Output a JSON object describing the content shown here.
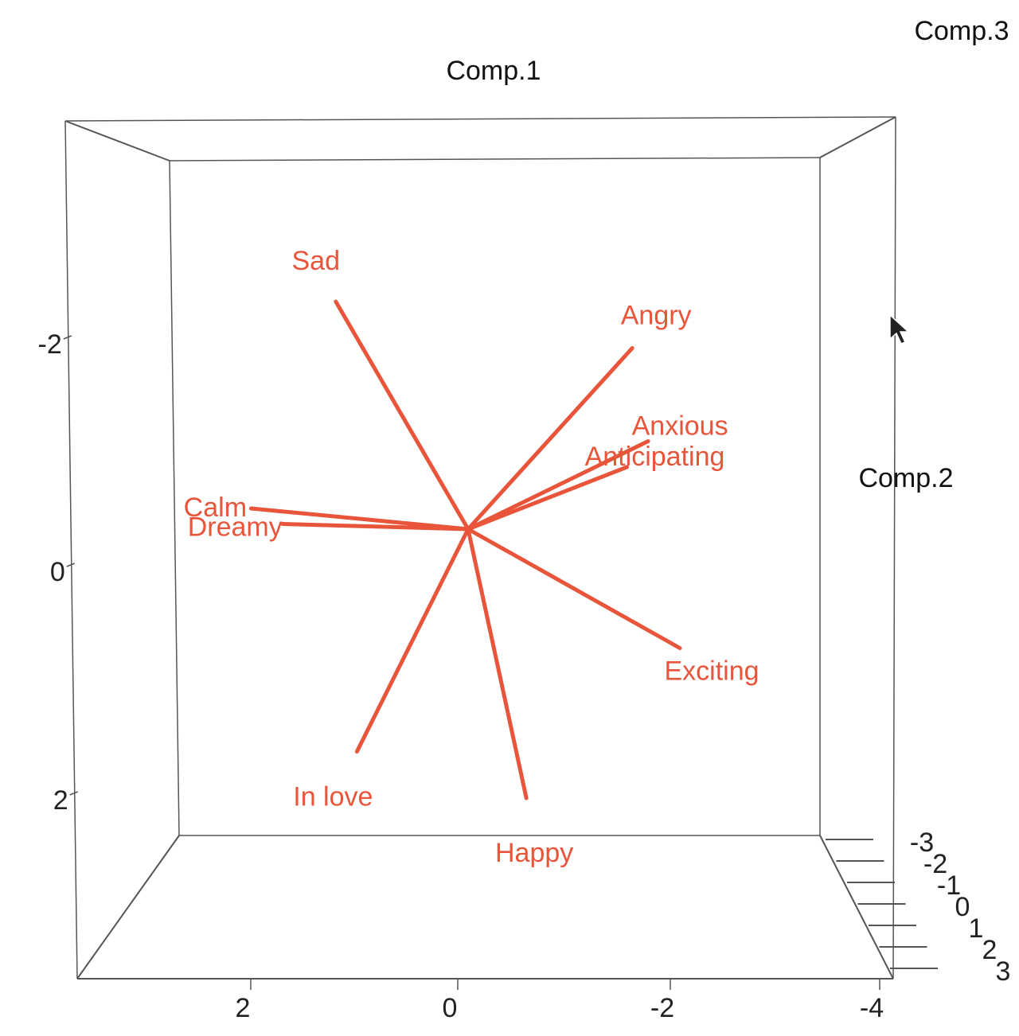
{
  "colors": {
    "arrow": "#e8553a",
    "axis_text": "#222222",
    "box_line": "#555555",
    "background": "#ffffff"
  },
  "chart_data": {
    "type": "scatter",
    "title": "",
    "axes": {
      "x": {
        "label": "Comp.1",
        "ticks": [
          "2",
          "0",
          "-2",
          "-4"
        ]
      },
      "y": {
        "label": "Comp.2",
        "ticks": [
          "-2",
          "0",
          "2"
        ]
      },
      "z": {
        "label": "Comp.3",
        "ticks": [
          "-3",
          "-2",
          "-1",
          "0",
          "1",
          "2",
          "3"
        ]
      }
    },
    "variables": [
      {
        "label": "Sad",
        "comp1": 1.25,
        "comp2": -2.2
      },
      {
        "label": "Angry",
        "comp1": -1.55,
        "comp2": -1.75
      },
      {
        "label": "Anxious",
        "comp1": -1.7,
        "comp2": -0.85
      },
      {
        "label": "Anticipating",
        "comp1": -1.5,
        "comp2": -0.6
      },
      {
        "label": "Calm",
        "comp1": 2.05,
        "comp2": -0.2
      },
      {
        "label": "Dreamy",
        "comp1": 1.75,
        "comp2": -0.05
      },
      {
        "label": "Exciting",
        "comp1": -2.0,
        "comp2": 1.15
      },
      {
        "label": "In love",
        "comp1": 1.05,
        "comp2": 2.15
      },
      {
        "label": "Happy",
        "comp1": -0.55,
        "comp2": 2.6
      }
    ],
    "grid": false,
    "legend": "none"
  }
}
